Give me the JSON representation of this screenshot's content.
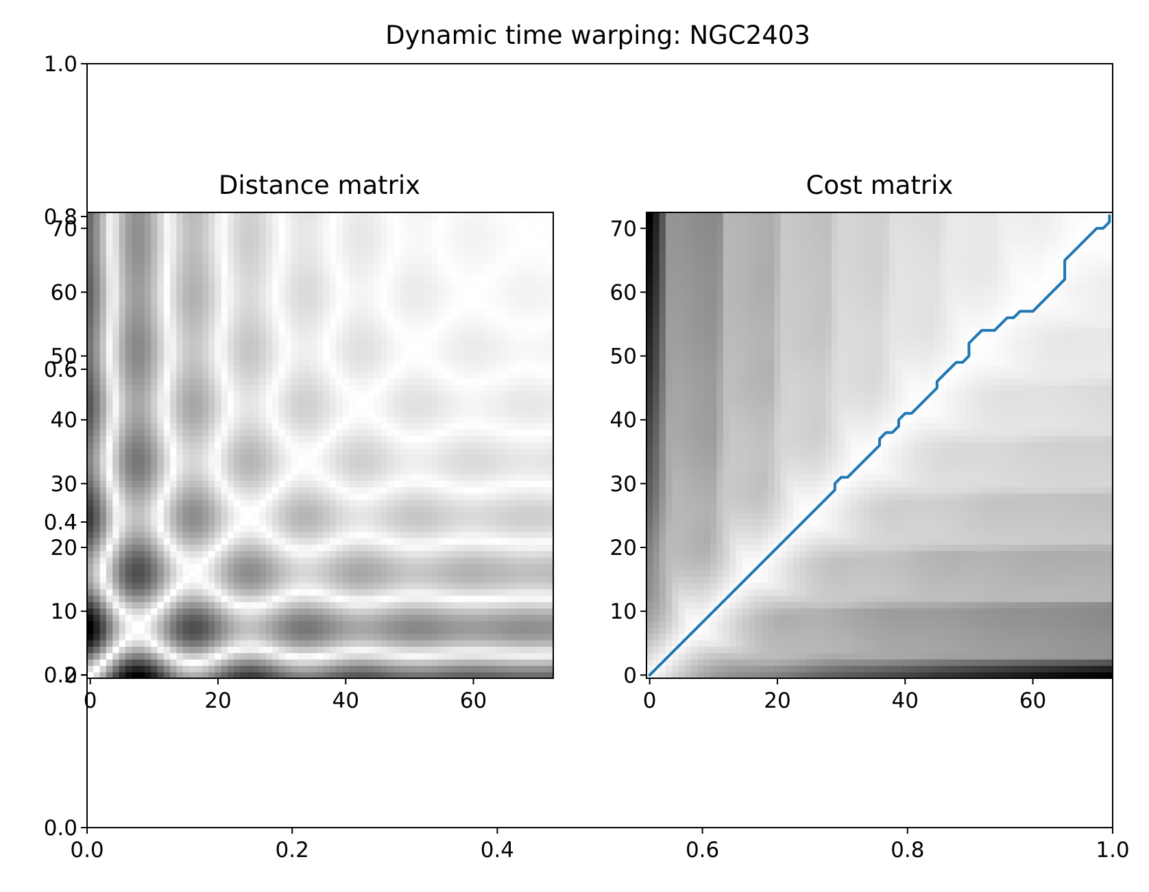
{
  "figure": {
    "title": "Dynamic time warping: NGC2403",
    "background": "#ffffff"
  },
  "chart_data": [
    {
      "type": "frame",
      "name": "outer",
      "xlim": [
        0.0,
        1.0
      ],
      "ylim": [
        0.0,
        1.0
      ],
      "xticks": [
        "0.0",
        "0.2",
        "0.4",
        "0.6",
        "0.8",
        "1.0"
      ],
      "yticks": [
        "0.0",
        "0.2",
        "0.4",
        "0.6",
        "0.8",
        "1.0"
      ],
      "xtick_values": [
        0.0,
        0.2,
        0.4,
        0.6,
        0.8,
        1.0
      ],
      "ytick_values": [
        0.0,
        0.2,
        0.4,
        0.6,
        0.8,
        1.0
      ]
    },
    {
      "type": "heatmap",
      "title": "Distance matrix",
      "size": 73,
      "colormap": "gray_r",
      "xlim": [
        -0.5,
        72.5
      ],
      "ylim": [
        -0.5,
        72.5
      ],
      "xticks": [
        "0",
        "20",
        "40",
        "60"
      ],
      "yticks": [
        "0",
        "10",
        "20",
        "30",
        "40",
        "50",
        "60",
        "70"
      ],
      "xtick_values": [
        0,
        20,
        40,
        60
      ],
      "ytick_values": [
        0,
        10,
        20,
        30,
        40,
        50,
        60,
        70
      ]
    },
    {
      "type": "heatmap",
      "title": "Cost matrix",
      "size": 73,
      "colormap": "gray_r",
      "xlim": [
        -0.5,
        72.5
      ],
      "ylim": [
        -0.5,
        72.5
      ],
      "xticks": [
        "0",
        "20",
        "40",
        "60"
      ],
      "yticks": [
        "0",
        "10",
        "20",
        "30",
        "40",
        "50",
        "60",
        "70"
      ],
      "xtick_values": [
        0,
        20,
        40,
        60
      ],
      "ytick_values": [
        0,
        10,
        20,
        30,
        40,
        50,
        60,
        70
      ],
      "path_color": "#1f77b4",
      "warping_path": {
        "x": [
          0,
          29,
          29,
          30,
          31,
          36,
          36,
          37,
          38,
          39,
          39,
          40,
          41,
          45,
          45,
          48,
          49,
          50,
          50,
          51,
          52,
          54,
          56,
          57,
          58,
          60,
          65,
          65,
          70,
          71,
          72,
          72
        ],
        "y": [
          0,
          29,
          30,
          31,
          31,
          36,
          37,
          38,
          38,
          39,
          40,
          41,
          41,
          45,
          46,
          49,
          49,
          50,
          52,
          53,
          54,
          54,
          56,
          56,
          57,
          57,
          62,
          65,
          70,
          70,
          71,
          72
        ]
      }
    }
  ]
}
